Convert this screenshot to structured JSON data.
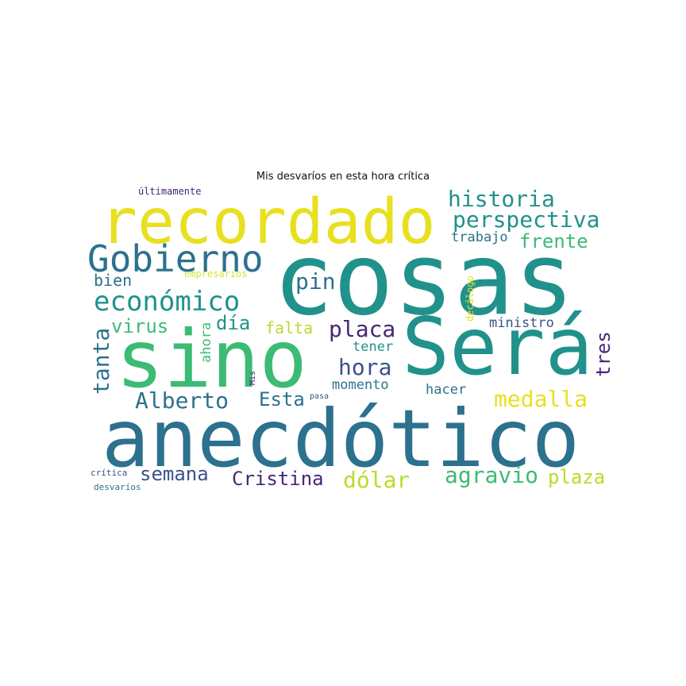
{
  "title": "Mis desvaríos en esta hora crítica",
  "palette": {
    "yellow": "#e8e01e",
    "lime": "#b7dd29",
    "green": "#3cbb75",
    "teal": "#21918c",
    "blue": "#2c718e",
    "indigo": "#3b528b",
    "purple": "#482677"
  },
  "words": {
    "cosas": "cosas",
    "anecdotico": "anecdótico",
    "sino": "sino",
    "sera": "Será",
    "recordado": "recordado",
    "gobierno": "Gobierno",
    "economico": "económico",
    "historia": "historia",
    "perspectiva": "perspectiva",
    "frente": "frente",
    "trabajo": "trabajo",
    "pin": "pin",
    "bien": "bien",
    "empresarios": "empresarios",
    "virus": "virus",
    "dia": "día",
    "falta": "falta",
    "placa": "placa",
    "ahora": "ahora",
    "tener": "tener",
    "ministro": "ministro",
    "decalogo": "decálogo",
    "tanta": "tanta",
    "hora": "hora",
    "tres": "tres",
    "momento": "momento",
    "alberto": "Alberto",
    "esta": "Esta",
    "mis": "Mis",
    "pasa": "pasa",
    "hacer": "hacer",
    "medalla": "medalla",
    "semana": "semana",
    "cristina": "Cristina",
    "dolar": "dólar",
    "agravio": "agravio",
    "plaza": "plaza",
    "critica": "crítica",
    "desvarios": "desvaríos",
    "ultimamente": "últimamente"
  }
}
